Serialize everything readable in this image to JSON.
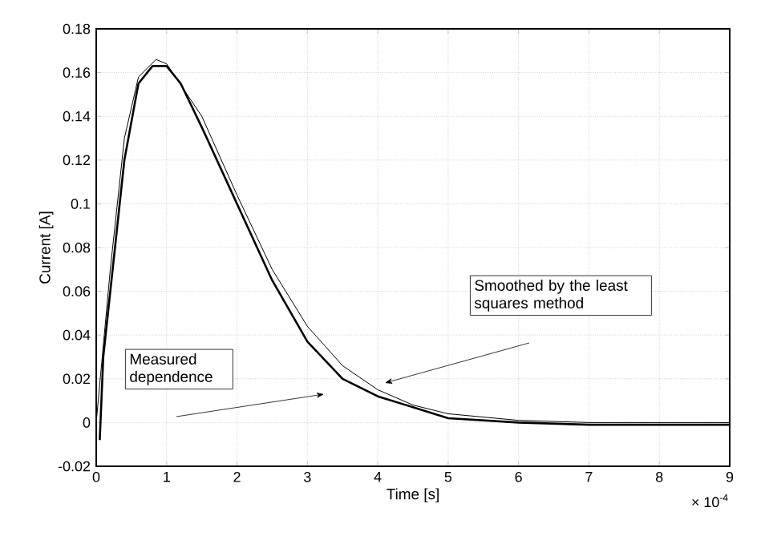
{
  "chart_data": {
    "type": "line",
    "xlabel": "Time [s]",
    "ylabel": "Current [A]",
    "xlim": [
      0,
      9
    ],
    "ylim": [
      -0.02,
      0.18
    ],
    "xticks": [
      0,
      1,
      2,
      3,
      4,
      5,
      6,
      7,
      8,
      9
    ],
    "yticks": [
      -0.02,
      0,
      0.02,
      0.04,
      0.06,
      0.08,
      0.1,
      0.12,
      0.14,
      0.16,
      0.18
    ],
    "grid": true,
    "marker": "none",
    "line_style": "solid",
    "series": [
      {
        "color": "#000000",
        "x": [
          0.05,
          0.1,
          0.2,
          0.4,
          0.6,
          0.8,
          1.0,
          1.2,
          1.5,
          2,
          2.5,
          3,
          3.5,
          4,
          4.5,
          5,
          6,
          7,
          8,
          9
        ],
        "values": [
          -0.008,
          0.03,
          0.06,
          0.12,
          0.155,
          0.163,
          0.163,
          0.155,
          0.135,
          0.1,
          0.065,
          0.037,
          0.02,
          0.012,
          0.007,
          0.002,
          0.0,
          -0.001,
          -0.001,
          -0.001
        ]
      },
      {
        "color": "#000000",
        "x": [
          0,
          0.2,
          0.4,
          0.6,
          0.85,
          1.0,
          1.5,
          2,
          2.5,
          3,
          3.5,
          4,
          4.5,
          5,
          6,
          7,
          9
        ],
        "values": [
          0,
          0.07,
          0.13,
          0.158,
          0.166,
          0.164,
          0.14,
          0.104,
          0.07,
          0.044,
          0.026,
          0.015,
          0.008,
          0.004,
          0.001,
          0,
          0
        ]
      }
    ],
    "annotations": [
      "Measured dependence",
      "Smoothed by the least squares method",
      "× 10$^{-4}$"
    ]
  }
}
